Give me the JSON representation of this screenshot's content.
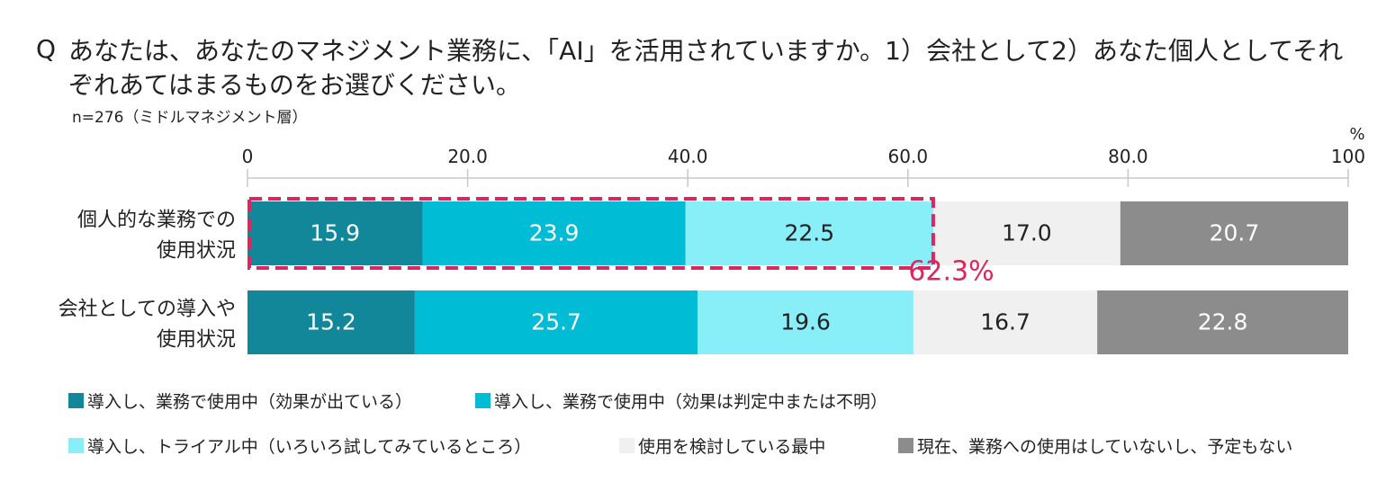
{
  "header": {
    "q_mark": "Q",
    "question": "あなたは、あなたのマネジメント業務に、「AI」を活用されていますか。1）会社として2）あなた個人としてそれぞれあてはまるものをお選びください。",
    "sample_note": "n=276（ミドルマネジメント層）"
  },
  "chart_data": {
    "type": "bar",
    "orientation": "horizontal",
    "stacked": true,
    "unit": "%",
    "xlim": [
      0,
      100
    ],
    "x_ticks": [
      "0",
      "20.0",
      "40.0",
      "60.0",
      "80.0",
      "100"
    ],
    "categories": [
      "個人的な業務での使用状況",
      "会社としての導入や使用状況"
    ],
    "category_lines": [
      [
        "個人的な業務での",
        "使用状況"
      ],
      [
        "会社としての導入や",
        "使用状況"
      ]
    ],
    "series": [
      {
        "name": "導入し、業務で使用中（効果が出ている）",
        "color": "#12879a",
        "text_color": "#ffffff",
        "values": [
          15.9,
          15.2
        ]
      },
      {
        "name": "導入し、業務で使用中（効果は判定中または不明）",
        "color": "#00bcd4",
        "text_color": "#ffffff",
        "values": [
          23.9,
          25.7
        ]
      },
      {
        "name": "導入し、トライアル中（いろいろ試してみているところ）",
        "color": "#88eef8",
        "text_color": "#222222",
        "values": [
          22.5,
          19.6
        ]
      },
      {
        "name": "使用を検討している最中",
        "color": "#f0f0f0",
        "text_color": "#222222",
        "values": [
          17.0,
          16.7
        ]
      },
      {
        "name": "現在、業務への使用はしていないし、予定もない",
        "color": "#8c8c8c",
        "text_color": "#ffffff",
        "values": [
          20.7,
          22.8
        ]
      }
    ],
    "value_labels": [
      [
        "15.9",
        "23.9",
        "22.5",
        "17.0",
        "20.7"
      ],
      [
        "15.2",
        "25.7",
        "19.6",
        "16.7",
        "22.8"
      ]
    ],
    "annotation": {
      "text": "62.3%",
      "category_index": 0,
      "from": 0,
      "to": 62.3,
      "color": "#e0245e"
    },
    "grid": false,
    "legend_position": "bottom"
  }
}
